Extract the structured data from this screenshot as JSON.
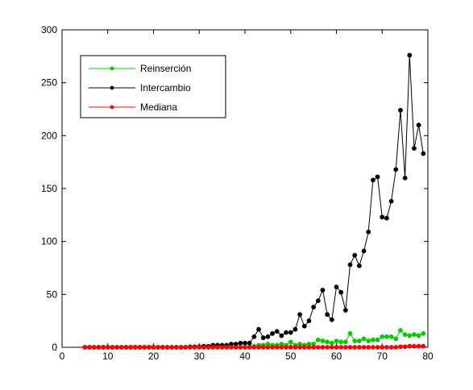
{
  "chart_data": {
    "type": "line",
    "title": "",
    "xlabel": "",
    "ylabel": "",
    "xlim": [
      0,
      80
    ],
    "ylim": [
      0,
      300
    ],
    "x_ticks": [
      "0",
      "10",
      "20",
      "30",
      "40",
      "50",
      "60",
      "70",
      "80"
    ],
    "y_ticks": [
      "0",
      "50",
      "100",
      "150",
      "200",
      "250",
      "300"
    ],
    "grid": false,
    "legend_position": "top-left",
    "x": [
      5,
      6,
      7,
      8,
      9,
      10,
      11,
      12,
      13,
      14,
      15,
      16,
      17,
      18,
      19,
      20,
      21,
      22,
      23,
      24,
      25,
      26,
      27,
      28,
      29,
      30,
      31,
      32,
      33,
      34,
      35,
      36,
      37,
      38,
      39,
      40,
      41,
      42,
      43,
      44,
      45,
      46,
      47,
      48,
      49,
      50,
      51,
      52,
      53,
      54,
      55,
      56,
      57,
      58,
      59,
      60,
      61,
      62,
      63,
      64,
      65,
      66,
      67,
      68,
      69,
      70,
      71,
      72,
      73,
      74,
      75,
      76,
      77,
      78,
      79
    ],
    "series": [
      {
        "name": "Reinserción",
        "color": "#00cc00",
        "values": [
          0,
          0,
          0,
          0,
          0,
          0,
          0,
          0,
          0,
          0,
          0,
          0,
          0,
          0,
          0,
          0,
          0,
          0,
          0,
          0,
          0,
          0,
          0,
          0,
          0,
          0,
          0,
          0,
          0,
          0,
          0,
          0,
          0,
          0,
          0,
          0,
          0.5,
          1,
          2,
          2,
          3,
          2,
          2,
          3,
          2,
          5,
          2,
          3,
          2,
          3,
          3,
          7,
          6,
          5,
          4,
          6,
          5,
          5,
          13,
          6,
          6,
          8,
          6,
          7,
          7,
          10,
          10,
          10,
          8,
          16,
          12,
          11,
          12,
          11,
          13
        ]
      },
      {
        "name": "Intercambio",
        "color": "#000000",
        "values": [
          0,
          0,
          0,
          0,
          0,
          0,
          0,
          0,
          0,
          0,
          0,
          0,
          0,
          0,
          0,
          0,
          0,
          0,
          0,
          0,
          0,
          0,
          0,
          0.5,
          0.5,
          0.5,
          1,
          1,
          2,
          2,
          2,
          2,
          3,
          3,
          4,
          4,
          4,
          10,
          17,
          9,
          10,
          13,
          15,
          11,
          14,
          14,
          17,
          31,
          20,
          25,
          38,
          44,
          54,
          31,
          26,
          57,
          52,
          35,
          78,
          87,
          77,
          91,
          109,
          158,
          161,
          123,
          122,
          138,
          168,
          224,
          160,
          276,
          188,
          210,
          183
        ]
      },
      {
        "name": "Mediana",
        "color": "#ff0000",
        "values": [
          0,
          0,
          0,
          0,
          0,
          0,
          0,
          0,
          0,
          0,
          0,
          0,
          0,
          0,
          0,
          0,
          0,
          0,
          0,
          0,
          0,
          0,
          0,
          0,
          0,
          0,
          0,
          0,
          0,
          0,
          0,
          0,
          0,
          0,
          0,
          0,
          0,
          0,
          0,
          0,
          0,
          0,
          0,
          0,
          0,
          0,
          0,
          0,
          0,
          0,
          0,
          0,
          0,
          0,
          0,
          0,
          0,
          0,
          0,
          0,
          0,
          0,
          0,
          0,
          0,
          0,
          0,
          0,
          0,
          0.5,
          0.5,
          1,
          1,
          1,
          1
        ]
      }
    ]
  }
}
